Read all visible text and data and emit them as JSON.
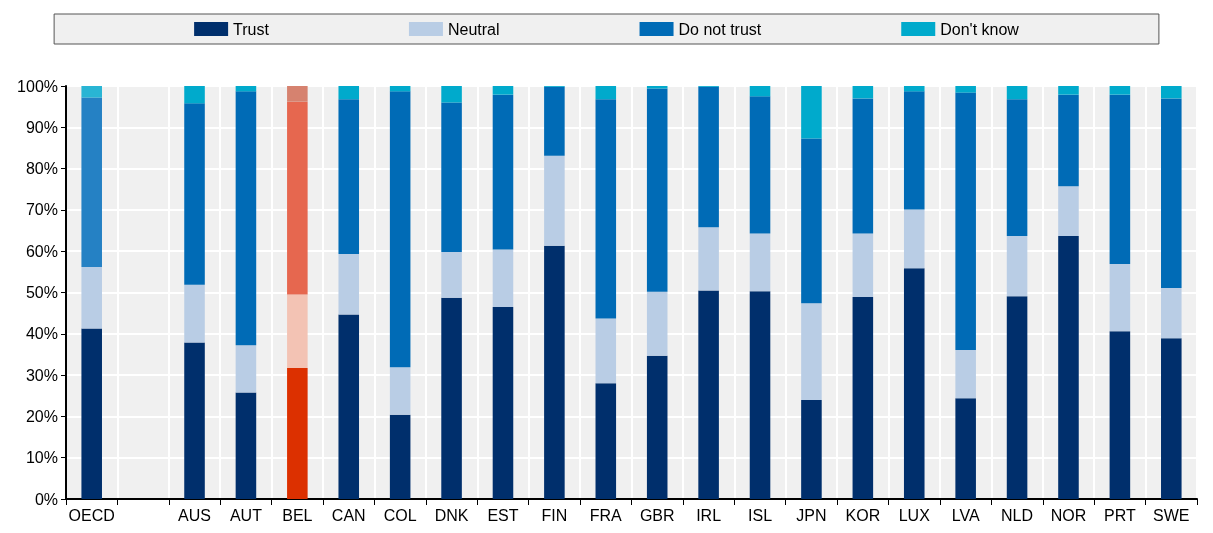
{
  "chart_data": {
    "type": "bar",
    "stacked": true,
    "legend": "top",
    "grid": true,
    "categories": [
      "OECD",
      null,
      "AUS",
      "AUT",
      "BEL",
      "CAN",
      "COL",
      "DNK",
      "EST",
      "FIN",
      "FRA",
      "GBR",
      "IRL",
      "ISL",
      "JPN",
      "KOR",
      "LUX",
      "LVA",
      "NLD",
      "NOR",
      "PRT",
      "SWE"
    ],
    "ylim": [
      0,
      100
    ],
    "yticks": [
      {
        "value": 0,
        "label": "0%"
      },
      {
        "value": 10,
        "label": "10%"
      },
      {
        "value": 20,
        "label": "20%"
      },
      {
        "value": 30,
        "label": "30%"
      },
      {
        "value": 40,
        "label": "40%"
      },
      {
        "value": 50,
        "label": "50%"
      },
      {
        "value": 60,
        "label": "60%"
      },
      {
        "value": 70,
        "label": "70%"
      },
      {
        "value": 80,
        "label": "80%"
      },
      {
        "value": 90,
        "label": "90%"
      },
      {
        "value": 100,
        "label": "100%"
      }
    ],
    "series": [
      {
        "name": "Trust",
        "color": "#002f6c",
        "colors": [
          "#002f6c",
          null,
          "#002f6c",
          "#002f6c",
          "#dc3000",
          "#002f6c",
          "#002f6c",
          "#002f6c",
          "#002f6c",
          "#002f6c",
          "#002f6c",
          "#002f6c",
          "#002f6c",
          "#002f6c",
          "#002f6c",
          "#002f6c",
          "#002f6c",
          "#002f6c",
          "#002f6c",
          "#002f6c",
          "#002f6c",
          "#002f6c"
        ],
        "values": [
          41.3,
          null,
          37.9,
          25.8,
          31.7,
          44.7,
          20.4,
          48.7,
          46.5,
          61.3,
          28.0,
          34.7,
          50.5,
          50.3,
          24.0,
          48.9,
          55.9,
          24.4,
          49.1,
          63.7,
          40.6,
          38.9
        ]
      },
      {
        "name": "Neutral",
        "color": "#b9cde5",
        "colors": [
          "#b9cde5",
          null,
          "#b9cde5",
          "#b9cde5",
          "#f3c3b4",
          "#b9cde5",
          "#b9cde5",
          "#b9cde5",
          "#b9cde5",
          "#b9cde5",
          "#b9cde5",
          "#b9cde5",
          "#b9cde5",
          "#b9cde5",
          "#b9cde5",
          "#b9cde5",
          "#b9cde5",
          "#b9cde5",
          "#b9cde5",
          "#b9cde5",
          "#b9cde5",
          "#b9cde5"
        ],
        "values": [
          14.9,
          null,
          14.0,
          11.4,
          17.8,
          14.6,
          11.5,
          11.1,
          13.9,
          21.8,
          15.7,
          15.5,
          15.3,
          14.0,
          23.4,
          15.4,
          14.2,
          11.7,
          14.6,
          12.0,
          16.3,
          12.2
        ]
      },
      {
        "name": "Do not trust",
        "color": "#006bb6",
        "colors": [
          "#2581c4",
          null,
          "#006bb6",
          "#006bb6",
          "#e6674f",
          "#006bb6",
          "#006bb6",
          "#006bb6",
          "#006bb6",
          "#006bb6",
          "#006bb6",
          "#006bb6",
          "#006bb6",
          "#006bb6",
          "#006bb6",
          "#006bb6",
          "#006bb6",
          "#006bb6",
          "#006bb6",
          "#006bb6",
          "#006bb6",
          "#006bb6"
        ],
        "values": [
          41.0,
          null,
          43.9,
          61.5,
          46.7,
          37.5,
          66.8,
          36.2,
          37.5,
          16.7,
          53.1,
          49.2,
          34.0,
          33.2,
          39.9,
          32.7,
          28.6,
          62.3,
          33.1,
          22.2,
          41.0,
          45.9
        ]
      },
      {
        "name": "Don't know",
        "color": "#00aacc",
        "colors": [
          "#29b5d4",
          null,
          "#00aacc",
          "#00aacc",
          "#d6826f",
          "#00aacc",
          "#00aacc",
          "#00aacc",
          "#00aacc",
          "#00aacc",
          "#00aacc",
          "#00aacc",
          "#00aacc",
          "#00aacc",
          "#00aacc",
          "#00aacc",
          "#00aacc",
          "#00aacc",
          "#00aacc",
          "#00aacc",
          "#00aacc",
          "#00aacc"
        ],
        "values": [
          2.8,
          null,
          4.2,
          1.3,
          3.8,
          3.2,
          1.3,
          4.0,
          2.1,
          0.2,
          3.2,
          0.6,
          0.2,
          2.5,
          12.7,
          3.0,
          1.3,
          1.6,
          3.2,
          2.1,
          2.1,
          3.0
        ]
      }
    ]
  }
}
